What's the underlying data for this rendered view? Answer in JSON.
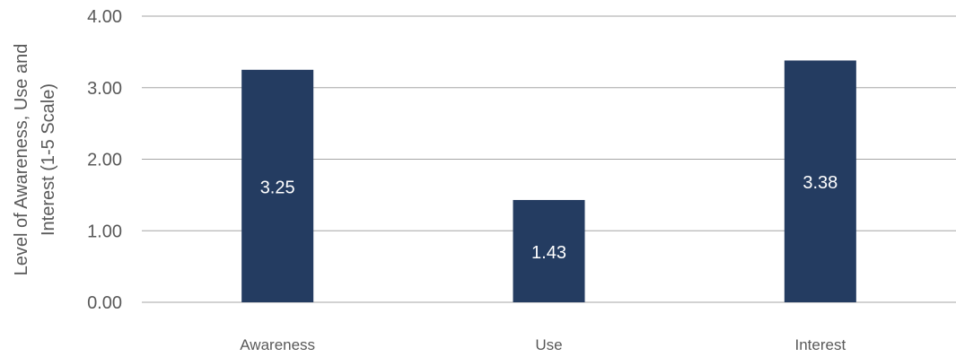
{
  "chart_data": {
    "type": "bar",
    "categories": [
      "Awareness",
      "Use",
      "Interest"
    ],
    "values": [
      3.25,
      1.43,
      3.38
    ],
    "data_labels": [
      "3.25",
      "1.43",
      "3.38"
    ],
    "ylabel_lines": [
      "Level of Awareness, Use and",
      "Interest (1-5 Scale)"
    ],
    "ylim": [
      0,
      4
    ],
    "yticks": [
      0,
      1,
      2,
      3,
      4
    ],
    "ytick_labels": [
      "0.00",
      "1.00",
      "2.00",
      "3.00",
      "4.00"
    ],
    "grid": true,
    "legend": "none",
    "bar_color": "#243c61",
    "grid_color": "#a6a6a6",
    "text_color": "#595959"
  }
}
